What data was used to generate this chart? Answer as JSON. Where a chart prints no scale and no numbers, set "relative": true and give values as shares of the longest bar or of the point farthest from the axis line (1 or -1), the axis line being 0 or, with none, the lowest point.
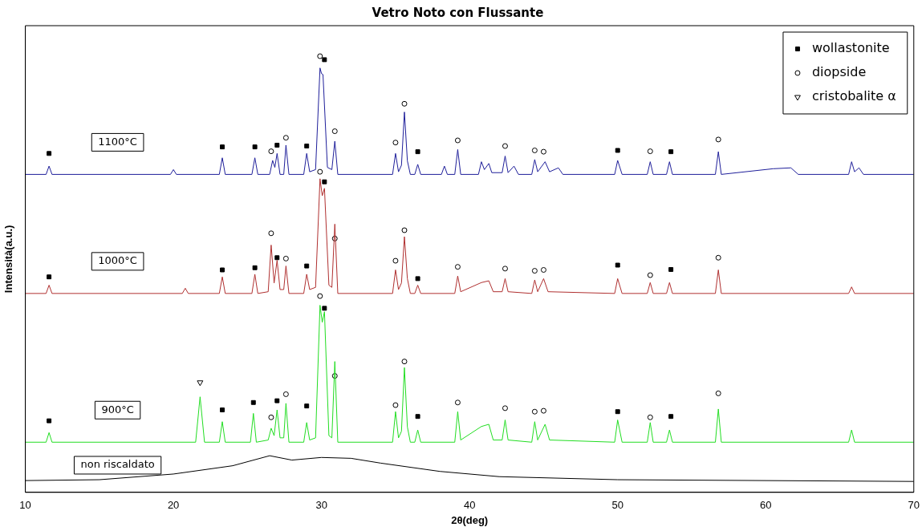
{
  "chart_data": {
    "type": "line",
    "title": "Vetro Noto con Flussante",
    "xlabel": "2θ(deg)",
    "ylabel": "Intensità(a.u.)",
    "relative": true,
    "xlim": [
      10,
      70
    ],
    "xticks": [
      10,
      20,
      30,
      40,
      50,
      60,
      70
    ],
    "grid": false,
    "legend": "top right",
    "series": [
      {
        "name": "1100°C",
        "marker": "none",
        "color": "#1f1f9a",
        "x": [
          10,
          11.4,
          11.6,
          11.8,
          19.8,
          20.0,
          20.2,
          23.1,
          23.3,
          23.5,
          25.3,
          25.5,
          25.7,
          26.5,
          26.7,
          26.85,
          27.0,
          27.2,
          27.45,
          27.6,
          27.8,
          28.8,
          29.0,
          29.2,
          29.6,
          29.9,
          30.0,
          30.1,
          30.4,
          30.7,
          30.9,
          31.1,
          34.8,
          35.0,
          35.2,
          35.4,
          35.6,
          35.8,
          36.0,
          36.3,
          36.5,
          36.7,
          38.1,
          38.3,
          38.5,
          39.0,
          39.2,
          39.4,
          40.6,
          40.8,
          41.0,
          41.3,
          41.5,
          42.2,
          42.4,
          42.6,
          43.0,
          43.3,
          44.2,
          44.4,
          44.6,
          45.1,
          45.4,
          46.0,
          46.3,
          49.8,
          50.0,
          50.3,
          52.0,
          52.2,
          52.4,
          53.3,
          53.5,
          53.7,
          56.6,
          56.8,
          57.0,
          60.5,
          61.7,
          62.2,
          65.6,
          65.8,
          66.0,
          66.3,
          66.6,
          70
        ],
        "values": [
          0.729,
          0.729,
          0.748,
          0.729,
          0.729,
          0.74,
          0.729,
          0.729,
          0.767,
          0.729,
          0.729,
          0.767,
          0.729,
          0.729,
          0.761,
          0.745,
          0.777,
          0.729,
          0.729,
          0.796,
          0.729,
          0.729,
          0.777,
          0.735,
          0.74,
          0.973,
          0.96,
          0.958,
          0.745,
          0.74,
          0.805,
          0.729,
          0.729,
          0.777,
          0.735,
          0.75,
          0.872,
          0.76,
          0.729,
          0.729,
          0.752,
          0.729,
          0.729,
          0.748,
          0.729,
          0.729,
          0.786,
          0.729,
          0.729,
          0.758,
          0.74,
          0.754,
          0.733,
          0.733,
          0.771,
          0.733,
          0.748,
          0.729,
          0.729,
          0.763,
          0.735,
          0.758,
          0.735,
          0.744,
          0.729,
          0.729,
          0.761,
          0.729,
          0.729,
          0.758,
          0.729,
          0.729,
          0.758,
          0.729,
          0.729,
          0.781,
          0.729,
          0.742,
          0.744,
          0.729,
          0.729,
          0.758,
          0.735,
          0.744,
          0.729,
          0.729
        ]
      },
      {
        "name": "1000°C",
        "marker": "none",
        "color": "#b03030",
        "x": [
          10,
          11.4,
          11.6,
          11.8,
          20.6,
          20.8,
          21.0,
          23.1,
          23.3,
          23.5,
          25.3,
          25.5,
          25.7,
          26.4,
          26.6,
          26.8,
          27.0,
          27.2,
          27.45,
          27.6,
          27.8,
          28.8,
          29.0,
          29.2,
          29.6,
          29.9,
          30.05,
          30.2,
          30.5,
          30.7,
          30.9,
          31.1,
          34.8,
          35.0,
          35.2,
          35.4,
          35.6,
          35.8,
          36.0,
          36.3,
          36.5,
          36.7,
          39.0,
          39.2,
          39.4,
          40.8,
          41.3,
          41.6,
          42.2,
          42.4,
          42.6,
          44.2,
          44.4,
          44.6,
          45.0,
          45.3,
          49.8,
          50.0,
          50.3,
          52.0,
          52.2,
          52.4,
          53.3,
          53.5,
          53.7,
          56.6,
          56.8,
          57.0,
          65.6,
          65.8,
          66.0,
          70
        ],
        "values": [
          0.456,
          0.456,
          0.475,
          0.456,
          0.456,
          0.468,
          0.456,
          0.456,
          0.494,
          0.456,
          0.456,
          0.5,
          0.456,
          0.46,
          0.567,
          0.48,
          0.532,
          0.465,
          0.465,
          0.519,
          0.456,
          0.456,
          0.5,
          0.465,
          0.47,
          0.719,
          0.68,
          0.697,
          0.475,
          0.47,
          0.615,
          0.456,
          0.456,
          0.51,
          0.465,
          0.48,
          0.586,
          0.49,
          0.456,
          0.456,
          0.475,
          0.456,
          0.456,
          0.496,
          0.46,
          0.481,
          0.485,
          0.46,
          0.46,
          0.49,
          0.46,
          0.456,
          0.487,
          0.46,
          0.49,
          0.46,
          0.456,
          0.49,
          0.456,
          0.456,
          0.481,
          0.456,
          0.456,
          0.481,
          0.456,
          0.456,
          0.51,
          0.456,
          0.456,
          0.471,
          0.456,
          0.456
        ]
      },
      {
        "name": "900°C",
        "marker": "none",
        "color": "#22dd22",
        "x": [
          10,
          11.4,
          11.6,
          11.8,
          21.5,
          21.8,
          22.1,
          23.1,
          23.3,
          23.5,
          25.2,
          25.4,
          25.6,
          26.4,
          26.6,
          26.8,
          27.0,
          27.2,
          27.45,
          27.6,
          27.8,
          28.8,
          29.0,
          29.2,
          29.6,
          29.9,
          30.05,
          30.2,
          30.5,
          30.7,
          30.9,
          31.1,
          34.8,
          35.0,
          35.2,
          35.4,
          35.6,
          35.8,
          36.0,
          36.3,
          36.5,
          36.7,
          39.0,
          39.2,
          39.4,
          40.8,
          41.3,
          41.6,
          42.2,
          42.4,
          42.6,
          44.2,
          44.4,
          44.6,
          45.1,
          45.4,
          49.8,
          50.0,
          50.3,
          52.0,
          52.2,
          52.4,
          53.3,
          53.5,
          53.7,
          56.6,
          56.8,
          57.0,
          65.6,
          65.8,
          66.0,
          70
        ],
        "values": [
          0.115,
          0.115,
          0.137,
          0.115,
          0.115,
          0.219,
          0.115,
          0.115,
          0.162,
          0.115,
          0.115,
          0.181,
          0.115,
          0.12,
          0.147,
          0.13,
          0.189,
          0.125,
          0.125,
          0.204,
          0.115,
          0.115,
          0.16,
          0.12,
          0.125,
          0.429,
          0.39,
          0.414,
          0.13,
          0.125,
          0.3,
          0.115,
          0.115,
          0.185,
          0.125,
          0.14,
          0.286,
          0.15,
          0.115,
          0.115,
          0.143,
          0.115,
          0.115,
          0.185,
          0.12,
          0.151,
          0.156,
          0.12,
          0.12,
          0.166,
          0.12,
          0.115,
          0.162,
          0.12,
          0.156,
          0.12,
          0.115,
          0.166,
          0.115,
          0.115,
          0.16,
          0.115,
          0.115,
          0.143,
          0.115,
          0.115,
          0.191,
          0.115,
          0.115,
          0.143,
          0.115,
          0.115
        ]
      },
      {
        "name": "non riscaldato",
        "marker": "none",
        "color": "#000000",
        "x": [
          10,
          15,
          20,
          24,
          26.5,
          28,
          30,
          32,
          34,
          38,
          42,
          50,
          70
        ],
        "values": [
          0.027,
          0.029,
          0.042,
          0.061,
          0.084,
          0.074,
          0.08,
          0.078,
          0.067,
          0.048,
          0.036,
          0.029,
          0.025
        ]
      },
      {
        "name": "wollastonite",
        "type": "scatter",
        "marker": "square",
        "color": "#000000",
        "x": [
          11.6,
          23.3,
          25.5,
          27.0,
          29.0,
          30.2,
          36.5,
          50.0,
          53.6,
          11.6,
          23.3,
          25.5,
          27.0,
          29.0,
          30.2,
          36.5,
          50.0,
          53.6,
          11.6,
          23.3,
          25.4,
          27.0,
          29.0,
          30.2,
          36.5,
          50.0,
          53.6
        ],
        "values": [
          0.777,
          0.792,
          0.792,
          0.796,
          0.794,
          0.992,
          0.781,
          0.784,
          0.781,
          0.494,
          0.51,
          0.515,
          0.538,
          0.519,
          0.712,
          0.49,
          0.521,
          0.511,
          0.164,
          0.189,
          0.206,
          0.21,
          0.198,
          0.422,
          0.174,
          0.185,
          0.174
        ]
      },
      {
        "name": "diopside",
        "type": "scatter",
        "marker": "circle",
        "color": "#000000",
        "x": [
          26.6,
          27.6,
          29.9,
          30.9,
          35.0,
          35.6,
          39.2,
          42.4,
          44.4,
          45.0,
          52.2,
          56.8,
          26.6,
          27.6,
          29.9,
          30.9,
          35.0,
          35.6,
          39.2,
          42.4,
          44.4,
          45.0,
          52.2,
          56.8,
          26.6,
          27.6,
          29.9,
          30.9,
          35.0,
          35.6,
          39.2,
          42.4,
          44.4,
          45.0,
          52.2,
          56.8
        ],
        "values": [
          0.782,
          0.813,
          1.0,
          0.828,
          0.802,
          0.891,
          0.807,
          0.794,
          0.784,
          0.781,
          0.782,
          0.809,
          0.594,
          0.536,
          0.735,
          0.582,
          0.531,
          0.601,
          0.517,
          0.513,
          0.508,
          0.51,
          0.498,
          0.538,
          0.172,
          0.225,
          0.45,
          0.267,
          0.2,
          0.3,
          0.206,
          0.193,
          0.185,
          0.187,
          0.172,
          0.227
        ]
      },
      {
        "name": "cristobalite α",
        "type": "scatter",
        "marker": "triangle",
        "color": "#000000",
        "x": [
          21.8
        ],
        "values": [
          0.252
        ]
      }
    ]
  }
}
